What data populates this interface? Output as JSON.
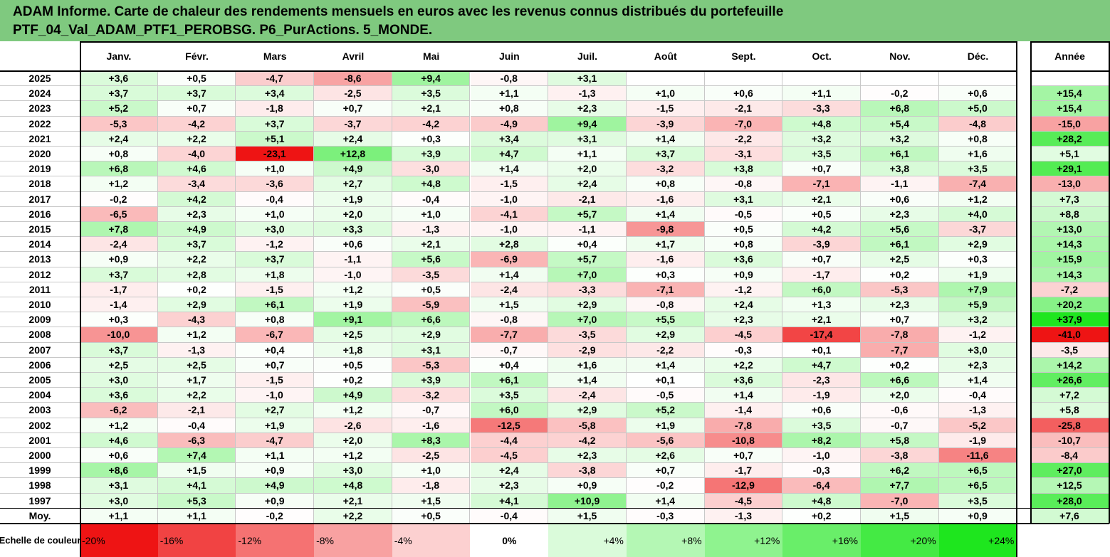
{
  "title": {
    "line1": "ADAM Informe. Carte de chaleur des rendements mensuels en euros avec les revenus connus distribués du portefeuille",
    "line2": "PTF_04_Val_ADAM_PTF1_PEROBSG. P6_PurActions. 5_MONDE."
  },
  "colors": {
    "title_bg": "#7fc97f",
    "positive": "#00dd00",
    "negative": "#ee0000",
    "neutral": "#ffffff"
  },
  "chart_data": {
    "type": "heatmap",
    "columns": [
      "Janv.",
      "Févr.",
      "Mars",
      "Avril",
      "Mai",
      "Juin",
      "Juil.",
      "Août",
      "Sept.",
      "Oct.",
      "Nov.",
      "Déc."
    ],
    "annual_column": "Année",
    "rows": [
      {
        "label": "2025",
        "values": [
          "+3,6",
          "+0,5",
          "-4,7",
          "-8,6",
          "+9,4",
          "-0,8",
          "+3,1",
          "",
          "",
          "",
          "",
          ""
        ],
        "annual": ""
      },
      {
        "label": "2024",
        "values": [
          "+3,7",
          "+3,7",
          "+3,4",
          "-2,5",
          "+3,5",
          "+1,1",
          "-1,3",
          "+1,0",
          "+0,6",
          "+1,1",
          "-0,2",
          "+0,6"
        ],
        "annual": "+15,4"
      },
      {
        "label": "2023",
        "values": [
          "+5,2",
          "+0,7",
          "-1,8",
          "+0,7",
          "+2,1",
          "+0,8",
          "+2,3",
          "-1,5",
          "-2,1",
          "-3,3",
          "+6,8",
          "+5,0"
        ],
        "annual": "+15,4"
      },
      {
        "label": "2022",
        "values": [
          "-5,3",
          "-4,2",
          "+3,7",
          "-3,7",
          "-4,2",
          "-4,9",
          "+9,4",
          "-3,9",
          "-7,0",
          "+4,8",
          "+5,4",
          "-4,8"
        ],
        "annual": "-15,0"
      },
      {
        "label": "2021",
        "values": [
          "+2,4",
          "+2,2",
          "+5,1",
          "+2,4",
          "+0,3",
          "+3,4",
          "+3,1",
          "+1,4",
          "-2,2",
          "+3,2",
          "+3,2",
          "+0,8"
        ],
        "annual": "+28,2"
      },
      {
        "label": "2020",
        "values": [
          "+0,8",
          "-4,0",
          "-23,1",
          "+12,8",
          "+3,9",
          "+4,7",
          "+1,1",
          "+3,7",
          "-3,1",
          "+3,5",
          "+6,1",
          "+1,6"
        ],
        "annual": "+5,1"
      },
      {
        "label": "2019",
        "values": [
          "+6,8",
          "+4,6",
          "+1,0",
          "+4,9",
          "-3,0",
          "+1,4",
          "+2,0",
          "-3,2",
          "+3,8",
          "+0,7",
          "+3,8",
          "+3,5"
        ],
        "annual": "+29,1"
      },
      {
        "label": "2018",
        "values": [
          "+1,2",
          "-3,4",
          "-3,6",
          "+2,7",
          "+4,8",
          "-1,5",
          "+2,4",
          "+0,8",
          "-0,8",
          "-7,1",
          "-1,1",
          "-7,4"
        ],
        "annual": "-13,0"
      },
      {
        "label": "2017",
        "values": [
          "-0,2",
          "+4,2",
          "-0,4",
          "+1,9",
          "-0,4",
          "-1,0",
          "-2,1",
          "-1,6",
          "+3,1",
          "+2,1",
          "+0,6",
          "+1,2"
        ],
        "annual": "+7,3"
      },
      {
        "label": "2016",
        "values": [
          "-6,5",
          "+2,3",
          "+1,0",
          "+2,0",
          "+1,0",
          "-4,1",
          "+5,7",
          "+1,4",
          "-0,5",
          "+0,5",
          "+2,3",
          "+4,0"
        ],
        "annual": "+8,8"
      },
      {
        "label": "2015",
        "values": [
          "+7,8",
          "+4,9",
          "+3,0",
          "+3,3",
          "-1,3",
          "-1,0",
          "-1,1",
          "-9,8",
          "+0,5",
          "+4,2",
          "+5,6",
          "-3,7"
        ],
        "annual": "+13,0"
      },
      {
        "label": "2014",
        "values": [
          "-2,4",
          "+3,7",
          "-1,2",
          "+0,6",
          "+2,1",
          "+2,8",
          "+0,4",
          "+1,7",
          "+0,8",
          "-3,9",
          "+6,1",
          "+2,9"
        ],
        "annual": "+14,3"
      },
      {
        "label": "2013",
        "values": [
          "+0,9",
          "+2,2",
          "+3,7",
          "-1,1",
          "+5,6",
          "-6,9",
          "+5,7",
          "-1,6",
          "+3,6",
          "+0,7",
          "+2,5",
          "+0,3"
        ],
        "annual": "+15,9"
      },
      {
        "label": "2012",
        "values": [
          "+3,7",
          "+2,8",
          "+1,8",
          "-1,0",
          "-3,5",
          "+1,4",
          "+7,0",
          "+0,3",
          "+0,9",
          "-1,7",
          "+0,2",
          "+1,9"
        ],
        "annual": "+14,3"
      },
      {
        "label": "2011",
        "values": [
          "-1,7",
          "+0,2",
          "-1,5",
          "+1,2",
          "+0,5",
          "-2,4",
          "-3,3",
          "-7,1",
          "-1,2",
          "+6,0",
          "-5,3",
          "+7,9"
        ],
        "annual": "-7,2"
      },
      {
        "label": "2010",
        "values": [
          "-1,4",
          "+2,9",
          "+6,1",
          "+1,9",
          "-5,9",
          "+1,5",
          "+2,9",
          "-0,8",
          "+2,4",
          "+1,3",
          "+2,3",
          "+5,9"
        ],
        "annual": "+20,2"
      },
      {
        "label": "2009",
        "values": [
          "+0,3",
          "-4,3",
          "+0,8",
          "+9,1",
          "+6,6",
          "-0,8",
          "+7,0",
          "+5,5",
          "+2,3",
          "+2,1",
          "+0,7",
          "+3,2"
        ],
        "annual": "+37,9"
      },
      {
        "label": "2008",
        "values": [
          "-10,0",
          "+1,2",
          "-6,7",
          "+2,5",
          "+2,9",
          "-7,7",
          "-3,5",
          "+2,9",
          "-4,5",
          "-17,4",
          "-7,8",
          "-1,2"
        ],
        "annual": "-41,0"
      },
      {
        "label": "2007",
        "values": [
          "+3,7",
          "-1,3",
          "+0,4",
          "+1,8",
          "+3,1",
          "-0,7",
          "-2,9",
          "-2,2",
          "-0,3",
          "+0,1",
          "-7,7",
          "+3,0"
        ],
        "annual": "-3,5"
      },
      {
        "label": "2006",
        "values": [
          "+2,5",
          "+2,5",
          "+0,7",
          "+0,5",
          "-5,3",
          "+0,4",
          "+1,6",
          "+1,4",
          "+2,2",
          "+4,7",
          "+0,2",
          "+2,3"
        ],
        "annual": "+14,2"
      },
      {
        "label": "2005",
        "values": [
          "+3,0",
          "+1,7",
          "-1,5",
          "+0,2",
          "+3,9",
          "+6,1",
          "+1,4",
          "+0,1",
          "+3,6",
          "-2,3",
          "+6,6",
          "+1,4"
        ],
        "annual": "+26,6"
      },
      {
        "label": "2004",
        "values": [
          "+3,6",
          "+2,2",
          "-1,0",
          "+4,9",
          "-3,2",
          "+3,5",
          "-2,4",
          "-0,5",
          "+1,4",
          "-1,9",
          "+2,0",
          "-0,4"
        ],
        "annual": "+7,2"
      },
      {
        "label": "2003",
        "values": [
          "-6,2",
          "-2,1",
          "+2,7",
          "+1,2",
          "-0,7",
          "+6,0",
          "+2,9",
          "+5,2",
          "-1,4",
          "+0,6",
          "-0,6",
          "-1,3"
        ],
        "annual": "+5,8"
      },
      {
        "label": "2002",
        "values": [
          "+1,2",
          "-0,4",
          "+1,9",
          "-2,6",
          "-1,6",
          "-12,5",
          "-5,8",
          "+1,9",
          "-7,8",
          "+3,5",
          "-0,7",
          "-5,2"
        ],
        "annual": "-25,8"
      },
      {
        "label": "2001",
        "values": [
          "+4,6",
          "-6,3",
          "-4,7",
          "+2,0",
          "+8,3",
          "-4,4",
          "-4,2",
          "-5,6",
          "-10,8",
          "+8,2",
          "+5,8",
          "-1,9"
        ],
        "annual": "-10,7"
      },
      {
        "label": "2000",
        "values": [
          "+0,6",
          "+7,4",
          "+1,1",
          "+1,2",
          "-2,5",
          "-4,5",
          "+2,3",
          "+2,6",
          "+0,7",
          "-1,0",
          "-3,8",
          "-11,6"
        ],
        "annual": "-8,4"
      },
      {
        "label": "1999",
        "values": [
          "+8,6",
          "+1,5",
          "+0,9",
          "+3,0",
          "+1,0",
          "+2,4",
          "-3,8",
          "+0,7",
          "-1,7",
          "-0,3",
          "+6,2",
          "+6,5"
        ],
        "annual": "+27,0"
      },
      {
        "label": "1998",
        "values": [
          "+3,1",
          "+4,1",
          "+4,9",
          "+4,8",
          "-1,8",
          "+2,3",
          "+0,9",
          "-0,2",
          "-12,9",
          "-6,4",
          "+7,7",
          "+6,5"
        ],
        "annual": "+12,5"
      },
      {
        "label": "1997",
        "values": [
          "+3,0",
          "+5,3",
          "+0,9",
          "+2,1",
          "+1,5",
          "+4,1",
          "+10,9",
          "+1,4",
          "-4,5",
          "+4,8",
          "-7,0",
          "+3,5"
        ],
        "annual": "+28,0"
      },
      {
        "label": "Moy.",
        "values": [
          "+1,1",
          "+1,1",
          "-0,2",
          "+2,2",
          "+0,5",
          "-0,4",
          "+1,5",
          "-0,3",
          "-1,3",
          "+0,2",
          "+1,5",
          "+0,9"
        ],
        "annual": "+7,6"
      }
    ],
    "scale_label": "Echelle de couleur",
    "scale": [
      "-20%",
      "-16%",
      "-12%",
      "-8%",
      "-4%",
      "0%",
      "+4%",
      "+8%",
      "+12%",
      "+16%",
      "+20%",
      "+24%"
    ],
    "scale_values": [
      -20,
      -16,
      -12,
      -8,
      -4,
      0,
      4,
      8,
      12,
      16,
      20,
      24
    ]
  }
}
